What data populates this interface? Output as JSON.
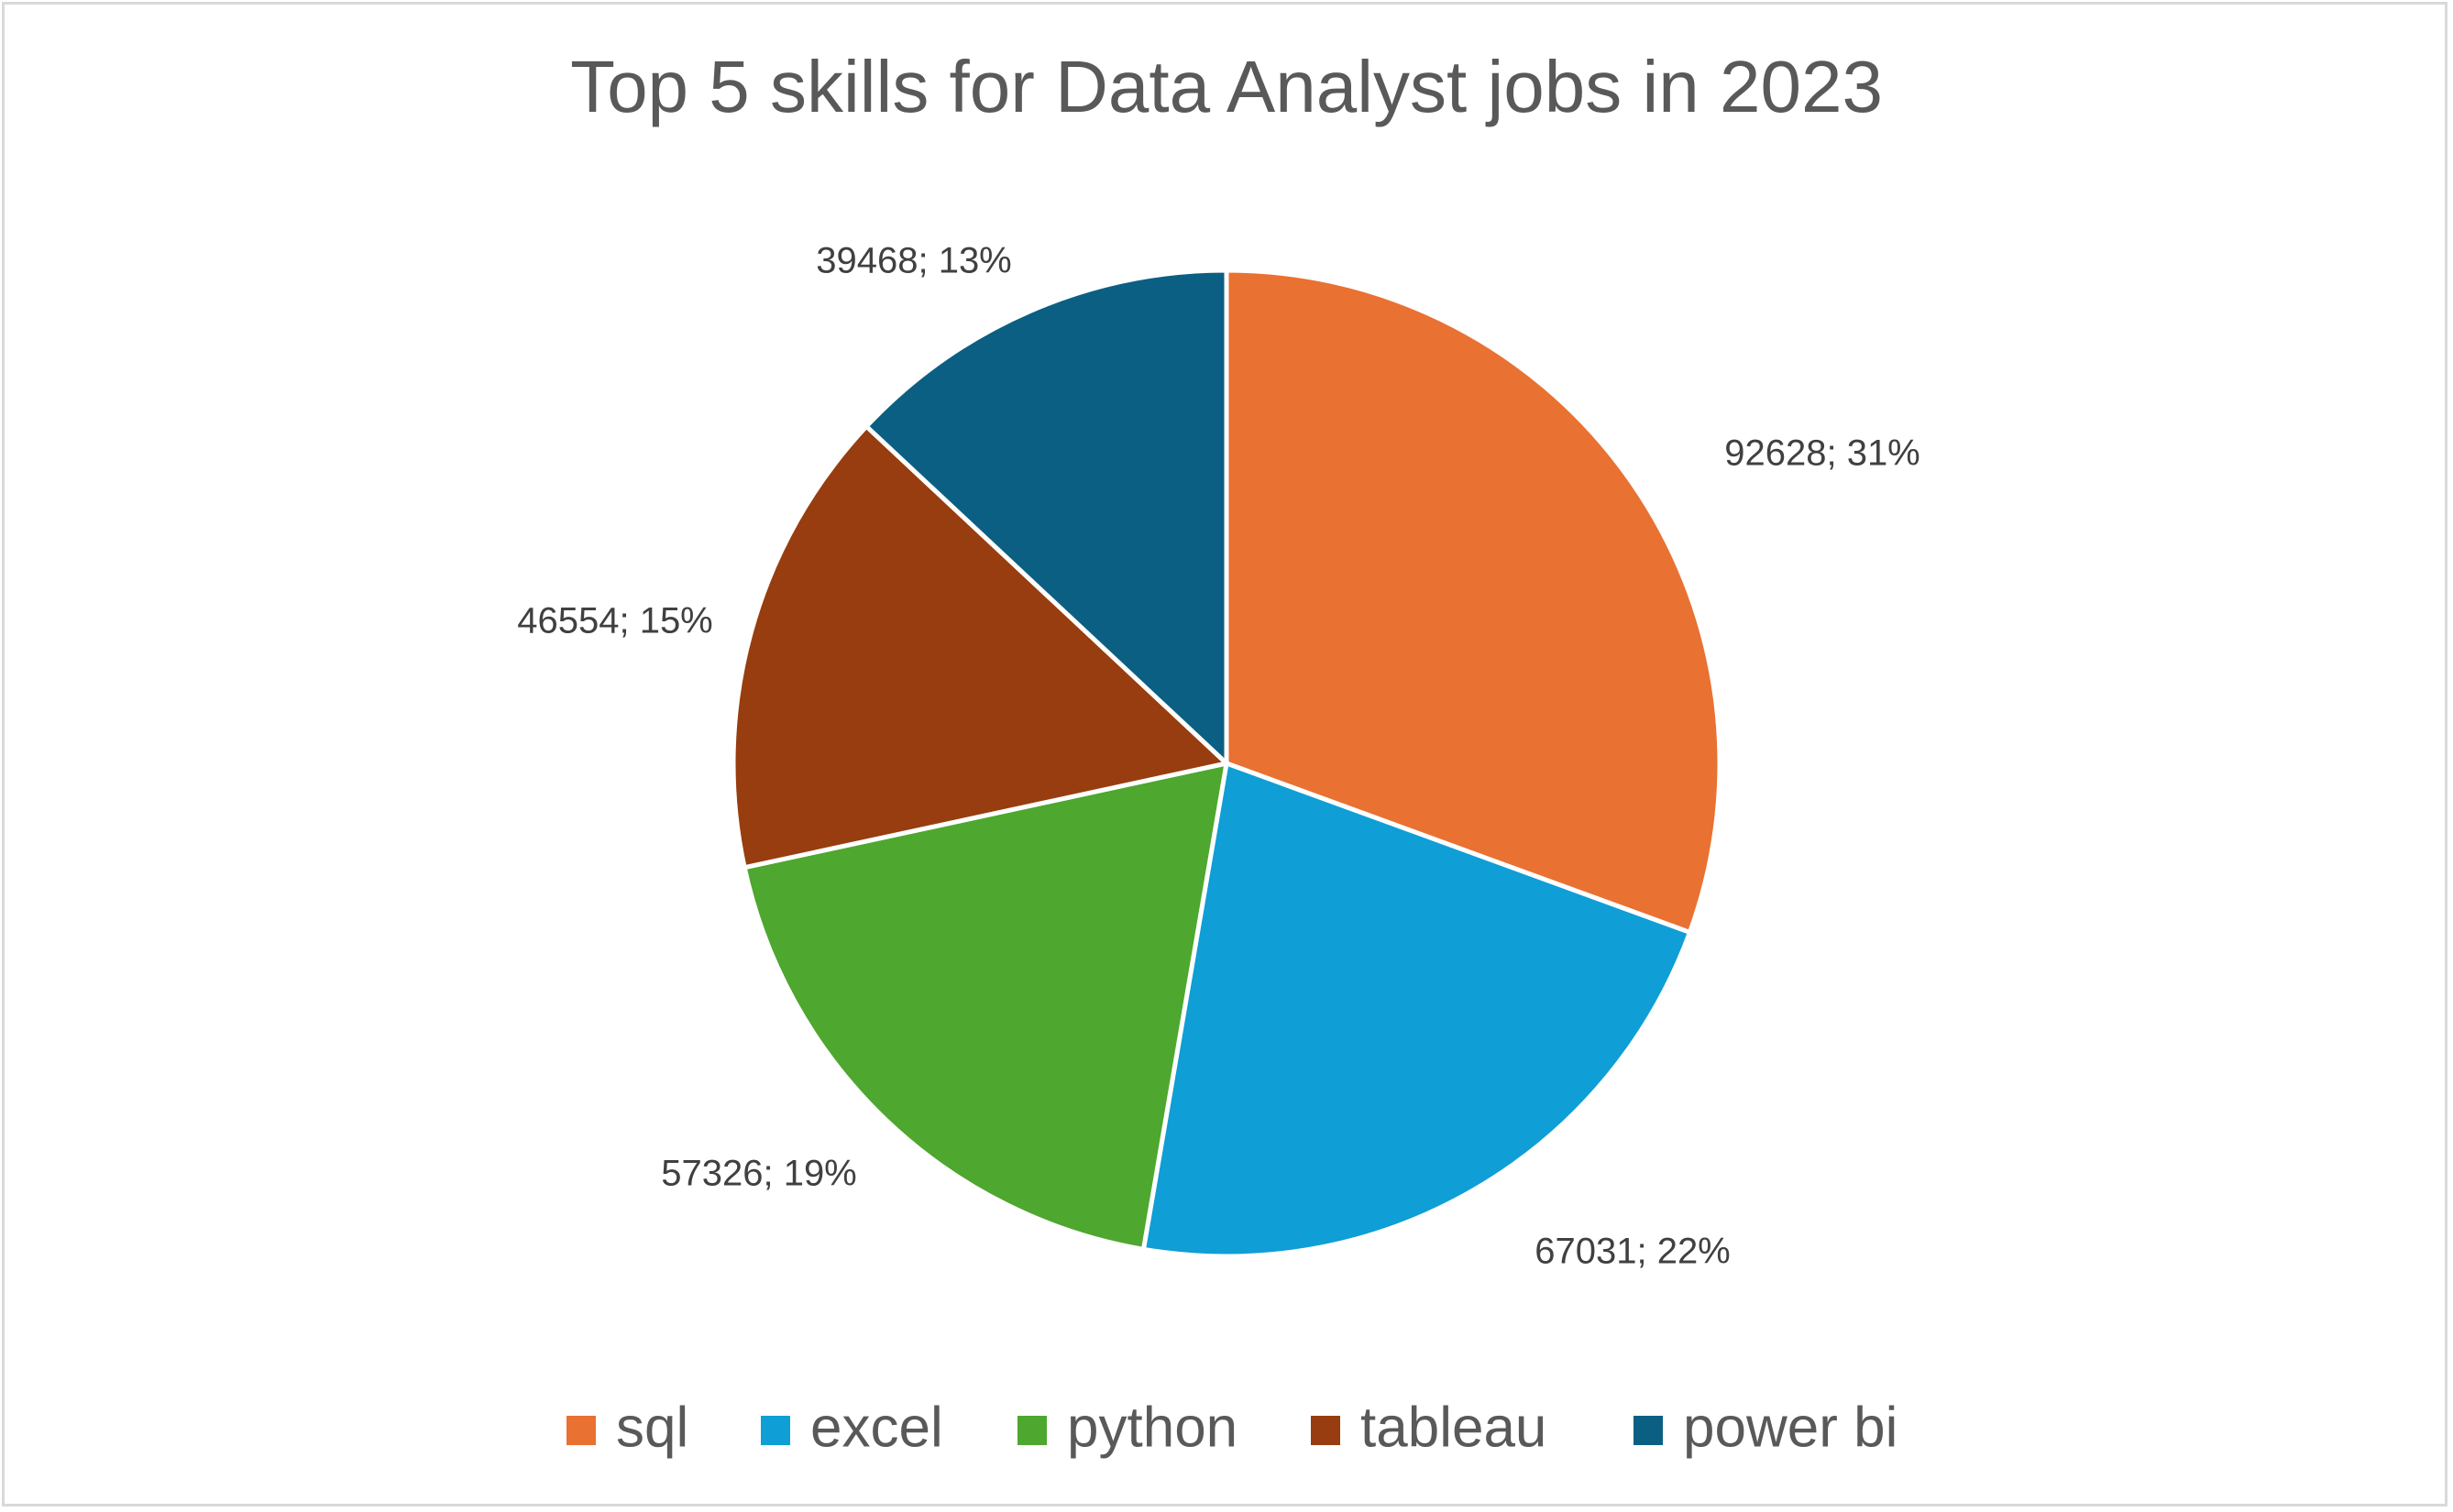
{
  "chart_data": {
    "type": "pie",
    "title": "Top 5 skills for Data Analyst jobs in 2023",
    "categories": [
      "sql",
      "excel",
      "python",
      "tableau",
      "power bi"
    ],
    "values": [
      92628,
      67031,
      57326,
      46554,
      39468
    ],
    "labels": [
      "92628; 31%",
      "67031; 22%",
      "57326; 19%",
      "46554; 15%",
      "39468; 13%"
    ],
    "colors": [
      "#e97132",
      "#0f9ed5",
      "#4ea72e",
      "#983d0f",
      "#0b5f82"
    ],
    "legend_position": "bottom",
    "start_angle": "12 o'clock, clockwise"
  }
}
